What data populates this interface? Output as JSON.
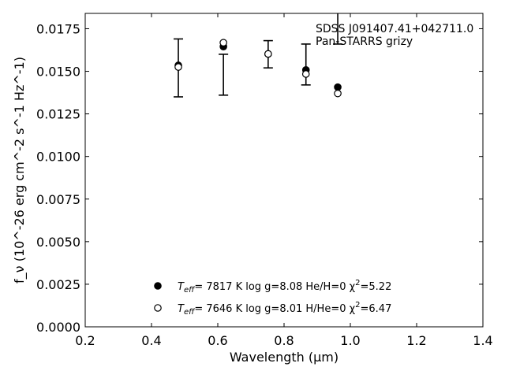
{
  "chart_data": {
    "type": "scatter",
    "xlabel": "Wavelength (μm)",
    "ylabel": "f_ν (10^-26 erg cm^-2 s^-1 Hz^-1)",
    "xlim": [
      0.2,
      1.4
    ],
    "ylim": [
      0.0,
      0.0184
    ],
    "xticks": [
      0.2,
      0.4,
      0.6,
      0.8,
      1.0,
      1.2,
      1.4
    ],
    "xtick_labels": [
      "0.2",
      "0.4",
      "0.6",
      "0.8",
      "1.0",
      "1.2",
      "1.4"
    ],
    "yticks": [
      0.0,
      0.0025,
      0.005,
      0.0075,
      0.01,
      0.0125,
      0.015,
      0.0175
    ],
    "ytick_labels": [
      "0.0000",
      "0.0025",
      "0.0050",
      "0.0075",
      "0.0100",
      "0.0125",
      "0.0150",
      "0.0175"
    ],
    "annotation": [
      "SDSS J091407.41+042711.0",
      "Pan-STARRS grizy"
    ],
    "observed": {
      "x": [
        0.481,
        0.617,
        0.752,
        0.866,
        0.962
      ],
      "y": [
        0.0152,
        0.0148,
        0.016,
        0.0154,
        0.018
      ],
      "yerr": [
        0.0017,
        0.0012,
        0.0008,
        0.0012,
        0.0014
      ]
    },
    "series": [
      {
        "name": "T_eff=  7817 K  log g=8.08  He/H=0  χ²=5.22",
        "marker": "filled-circle",
        "color": "#000000",
        "x": [
          0.481,
          0.617,
          0.752,
          0.866,
          0.962
        ],
        "y": [
          0.01535,
          0.01645,
          0.01602,
          0.01508,
          0.01407
        ]
      },
      {
        "name": "T_eff=  7646 K  log g=8.01  H/He=0  χ²=6.47",
        "marker": "open-circle",
        "color": "#000000",
        "x": [
          0.481,
          0.617,
          0.752,
          0.866,
          0.962
        ],
        "y": [
          0.01525,
          0.01668,
          0.01602,
          0.01484,
          0.0137
        ]
      }
    ],
    "legend": {
      "placement": "lower-center",
      "entries": [
        {
          "teff_label": "T",
          "teff_sub": "eff",
          "text": "=  7817 K  log g=8.08  He/H=0  χ",
          "sup": "2",
          "tail": "=5.22"
        },
        {
          "teff_label": "T",
          "teff_sub": "eff",
          "text": "=  7646 K  log g=8.01  H/He=0  χ",
          "sup": "2",
          "tail": "=6.47"
        }
      ]
    }
  }
}
